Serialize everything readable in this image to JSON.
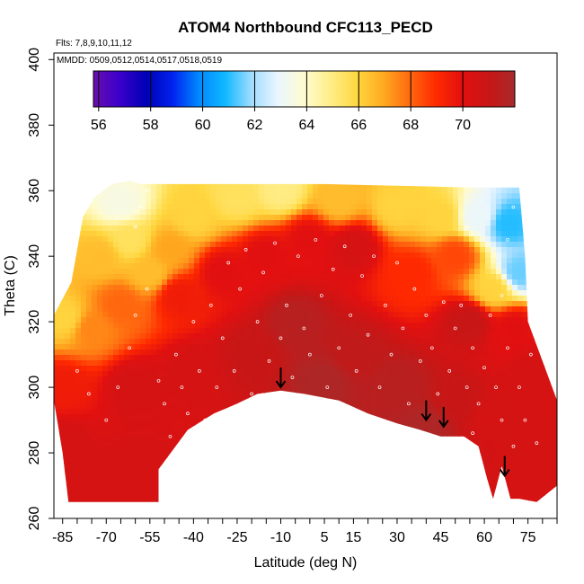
{
  "chart_data": {
    "type": "heatmap",
    "title": "ATOM4 Northbound CFC113_PECD",
    "annotations": [
      {
        "text": "Flts: 7,8,9,10,11,12"
      },
      {
        "text": "MMDD: 0509,0512,0514,0517,0518,0519"
      }
    ],
    "xlabel": "Latitude (deg N)",
    "ylabel": "Theta (C)",
    "xlim": [
      -88,
      85
    ],
    "ylim": [
      260,
      402
    ],
    "x_ticks": [
      -85,
      -70,
      -55,
      -40,
      -25,
      -10,
      5,
      15,
      30,
      45,
      60,
      75
    ],
    "y_ticks": [
      260,
      280,
      300,
      320,
      340,
      360,
      380,
      400
    ],
    "grid": false,
    "colorbar": {
      "ticks": [
        56,
        58,
        60,
        62,
        64,
        66,
        68,
        70
      ],
      "range": [
        55.8,
        72
      ],
      "colors": [
        "#6a0dad",
        "#3a00cc",
        "#0000b4",
        "#0022ee",
        "#0088ff",
        "#10b8ff",
        "#9fdcff",
        "#eaf6ff",
        "#fffbd0",
        "#ffee88",
        "#ffd740",
        "#ffaa20",
        "#ff6a10",
        "#ff2a00",
        "#e21010",
        "#c81616",
        "#a82a2a"
      ]
    },
    "surface_points": [
      {
        "lat": -84,
        "theta": 321,
        "value": 66
      },
      {
        "lat": -85,
        "theta": 300,
        "value": 69.5
      },
      {
        "lat": -85,
        "theta": 283,
        "value": 70.5
      },
      {
        "lat": -82,
        "theta": 268,
        "value": 70.5
      },
      {
        "lat": -72,
        "theta": 340,
        "value": 66.5
      },
      {
        "lat": -65,
        "theta": 356,
        "value": 63.5
      },
      {
        "lat": -62,
        "theta": 345,
        "value": 65.5
      },
      {
        "lat": -55,
        "theta": 335,
        "value": 66.5
      },
      {
        "lat": -48,
        "theta": 342,
        "value": 67
      },
      {
        "lat": -40,
        "theta": 352,
        "value": 66
      },
      {
        "lat": -25,
        "theta": 358,
        "value": 65.5
      },
      {
        "lat": -10,
        "theta": 360,
        "value": 65
      },
      {
        "lat": 10,
        "theta": 357,
        "value": 66.5
      },
      {
        "lat": 30,
        "theta": 355,
        "value": 66
      },
      {
        "lat": 45,
        "theta": 352,
        "value": 66
      },
      {
        "lat": 58,
        "theta": 352,
        "value": 63
      },
      {
        "lat": 68,
        "theta": 350,
        "value": 61
      },
      {
        "lat": 72,
        "theta": 335,
        "value": 61.5
      },
      {
        "lat": 63,
        "theta": 330,
        "value": 66
      },
      {
        "lat": -75,
        "theta": 318,
        "value": 67.5
      },
      {
        "lat": -65,
        "theta": 325,
        "value": 68
      },
      {
        "lat": -45,
        "theta": 328,
        "value": 69.5
      },
      {
        "lat": -30,
        "theta": 335,
        "value": 70
      },
      {
        "lat": -15,
        "theta": 340,
        "value": 70
      },
      {
        "lat": 0,
        "theta": 345,
        "value": 70
      },
      {
        "lat": 15,
        "theta": 343,
        "value": 70.5
      },
      {
        "lat": 35,
        "theta": 335,
        "value": 69
      },
      {
        "lat": 50,
        "theta": 340,
        "value": 68.5
      },
      {
        "lat": 55,
        "theta": 320,
        "value": 71
      },
      {
        "lat": 70,
        "theta": 318,
        "value": 70
      },
      {
        "lat": 78,
        "theta": 305,
        "value": 70.5
      },
      {
        "lat": 80,
        "theta": 280,
        "value": 70.5
      },
      {
        "lat": -60,
        "theta": 300,
        "value": 70.5
      },
      {
        "lat": -60,
        "theta": 275,
        "value": 70.5
      },
      {
        "lat": -40,
        "theta": 305,
        "value": 70.5
      },
      {
        "lat": -20,
        "theta": 310,
        "value": 71
      },
      {
        "lat": -5,
        "theta": 320,
        "value": 71.5
      },
      {
        "lat": 5,
        "theta": 302,
        "value": 71.8
      },
      {
        "lat": 15,
        "theta": 310,
        "value": 71.2
      },
      {
        "lat": 30,
        "theta": 300,
        "value": 71.5
      },
      {
        "lat": 40,
        "theta": 288,
        "value": 71.8
      },
      {
        "lat": 50,
        "theta": 295,
        "value": 71
      },
      {
        "lat": 62,
        "theta": 290,
        "value": 70.5
      },
      {
        "lat": 70,
        "theta": 270,
        "value": 70.5
      }
    ],
    "domain": {
      "top": [
        [
          -88,
          322
        ],
        [
          -82,
          332
        ],
        [
          -78,
          352
        ],
        [
          -74,
          358
        ],
        [
          -68,
          362
        ],
        [
          -62,
          363
        ],
        [
          -58,
          362
        ],
        [
          -25,
          362
        ],
        [
          5,
          362
        ],
        [
          55,
          361
        ],
        [
          72,
          361
        ],
        [
          74,
          340
        ],
        [
          75,
          320
        ],
        [
          80,
          308
        ],
        [
          85,
          296
        ]
      ],
      "bottom": [
        [
          -88,
          296
        ],
        [
          -85,
          280
        ],
        [
          -83,
          265
        ],
        [
          -52,
          265
        ],
        [
          -52,
          275
        ],
        [
          -42,
          287
        ],
        [
          -33,
          292
        ],
        [
          -25,
          295
        ],
        [
          -18,
          298
        ],
        [
          -10,
          299
        ],
        [
          -2,
          298
        ],
        [
          10,
          296
        ],
        [
          20,
          292
        ],
        [
          30,
          289
        ],
        [
          38,
          287
        ],
        [
          45,
          285
        ],
        [
          53,
          285
        ],
        [
          58,
          282
        ],
        [
          61,
          272
        ],
        [
          63,
          266
        ],
        [
          66,
          276
        ],
        [
          69,
          266
        ],
        [
          72,
          266
        ],
        [
          78,
          265
        ],
        [
          85,
          270
        ]
      ]
    },
    "observations": [
      [
        -80,
        305
      ],
      [
        -76,
        298
      ],
      [
        -70,
        290
      ],
      [
        -66,
        300
      ],
      [
        -62,
        312
      ],
      [
        -60,
        322
      ],
      [
        -56,
        330
      ],
      [
        -52,
        302
      ],
      [
        -50,
        295
      ],
      [
        -48,
        285
      ],
      [
        -46,
        310
      ],
      [
        -44,
        300
      ],
      [
        -42,
        292
      ],
      [
        -40,
        320
      ],
      [
        -38,
        305
      ],
      [
        -36,
        290
      ],
      [
        -34,
        325
      ],
      [
        -32,
        300
      ],
      [
        -30,
        315
      ],
      [
        -28,
        338
      ],
      [
        -26,
        305
      ],
      [
        -24,
        330
      ],
      [
        -22,
        342
      ],
      [
        -20,
        298
      ],
      [
        -18,
        320
      ],
      [
        -16,
        335
      ],
      [
        -14,
        308
      ],
      [
        -12,
        344
      ],
      [
        -10,
        315
      ],
      [
        -8,
        325
      ],
      [
        -6,
        303
      ],
      [
        -4,
        340
      ],
      [
        -2,
        318
      ],
      [
        0,
        310
      ],
      [
        2,
        345
      ],
      [
        4,
        328
      ],
      [
        6,
        300
      ],
      [
        8,
        336
      ],
      [
        10,
        312
      ],
      [
        12,
        343
      ],
      [
        14,
        322
      ],
      [
        16,
        305
      ],
      [
        18,
        334
      ],
      [
        20,
        316
      ],
      [
        22,
        340
      ],
      [
        24,
        300
      ],
      [
        26,
        325
      ],
      [
        28,
        310
      ],
      [
        30,
        338
      ],
      [
        32,
        318
      ],
      [
        34,
        295
      ],
      [
        36,
        330
      ],
      [
        38,
        308
      ],
      [
        40,
        322
      ],
      [
        42,
        312
      ],
      [
        44,
        298
      ],
      [
        46,
        326
      ],
      [
        48,
        305
      ],
      [
        50,
        318
      ],
      [
        52,
        325
      ],
      [
        54,
        300
      ],
      [
        56,
        312
      ],
      [
        58,
        295
      ],
      [
        60,
        306
      ],
      [
        62,
        322
      ],
      [
        64,
        300
      ],
      [
        66,
        290
      ],
      [
        68,
        312
      ],
      [
        70,
        282
      ],
      [
        72,
        300
      ],
      [
        74,
        290
      ],
      [
        76,
        310
      ],
      [
        78,
        283
      ],
      [
        70,
        355
      ],
      [
        68,
        345
      ],
      [
        66,
        328
      ],
      [
        56,
        286
      ],
      [
        58,
        279
      ],
      [
        -60,
        349
      ],
      [
        -58,
        355
      ],
      [
        -56,
        360
      ]
    ],
    "arrows": [
      {
        "lat": -10,
        "theta": 300
      },
      {
        "lat": 40,
        "theta": 290
      },
      {
        "lat": 46,
        "theta": 288
      },
      {
        "lat": 67,
        "theta": 273
      }
    ]
  }
}
